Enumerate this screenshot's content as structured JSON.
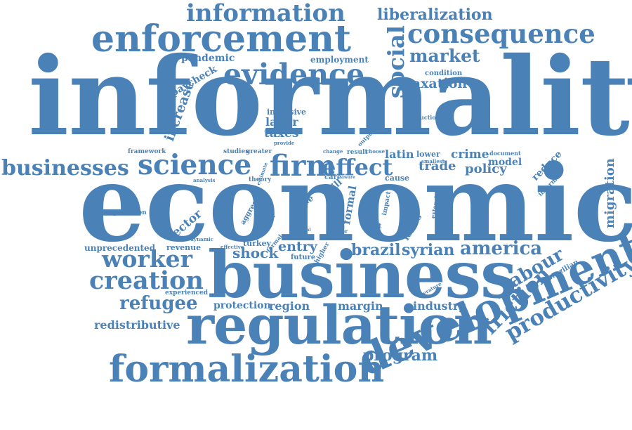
{
  "cloud": {
    "color": "#4a82b7",
    "background": "#ffffff",
    "words": {
      "informality": "informality",
      "economic": "economic",
      "business": "business",
      "regulation": "regulation",
      "formalization": "formalization",
      "development": "development",
      "enforcement": "enforcement",
      "information": "information",
      "evidence": "evidence",
      "consequence": "consequence",
      "liberalization": "liberalization",
      "market": "market",
      "social": "social",
      "science": "science",
      "businesses": "businesses",
      "firm": "firm",
      "effect": "effect",
      "creation": "creation",
      "worker": "worker",
      "refugee": "refugee",
      "productivity": "productivity",
      "labour": "labour",
      "friction": "friction",
      "america": "america",
      "brazil": "brazil",
      "syrian": "syrian",
      "shock": "shock",
      "entry": "entry",
      "program": "program",
      "migration": "migration",
      "redistributive": "redistributive",
      "unprecedented": "unprecedented",
      "revenue": "revenue",
      "protection": "protection",
      "region": "region",
      "margin": "margin",
      "industry": "industry",
      "trade": "trade",
      "policy": "policy",
      "latin": "latin",
      "crime": "crime",
      "model": "model",
      "reduce": "reduce",
      "taxation": "taxation",
      "condition": "condition",
      "pandemic": "pandemic",
      "employment": "employment",
      "paycheck": "paycheck",
      "increase": "increase",
      "intensive": "intensive",
      "labor": "labor",
      "taxes": "taxes",
      "sector": "sector",
      "expectation": "expectation",
      "framework": "framework",
      "studies": "studies",
      "greater": "greater",
      "analysis": "analysis",
      "theory": "theory",
      "estimate": "estimate",
      "aggregate": "aggregate",
      "research": "research",
      "turkey": "turkey",
      "effective": "effective",
      "dynamic": "dynamic",
      "experienced": "experienced",
      "future": "future",
      "higher": "higher",
      "natural": "natural",
      "paper": "paper",
      "take": "take",
      "skill": "skill",
      "care": "care",
      "formal": "formal",
      "data": "data",
      "size": "size",
      "larger": "larger",
      "most": "most",
      "result": "result",
      "choose": "choose",
      "change": "change",
      "output": "output",
      "provide": "provide",
      "reduction": "reduction",
      "lower": "lower",
      "smallest": "smallest",
      "document": "document",
      "cause": "cause",
      "impact": "impact",
      "losses": "losses",
      "extensive": "extensive",
      "informal": "informal",
      "brazilian": "brazilian",
      "literature": "literature",
      "wage": "wage",
      "aware": "aware",
      "better": "better",
      "profit": "profit",
      "survey": "survey",
      "channel": "channel",
      "high": "high",
      "work": "work"
    }
  }
}
